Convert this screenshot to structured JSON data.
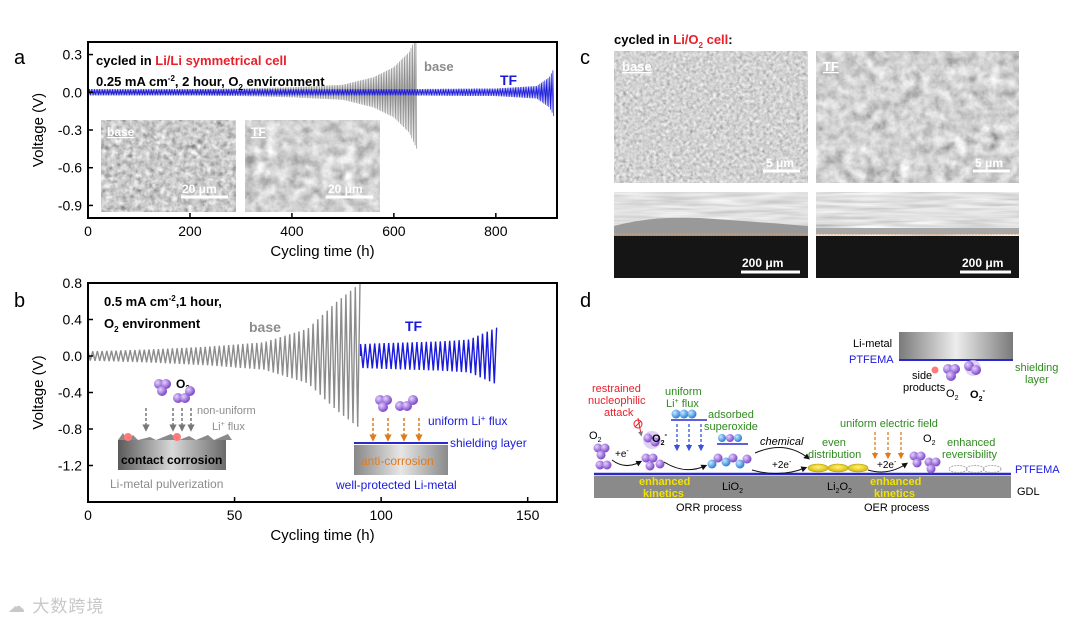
{
  "panel_labels": {
    "a": "a",
    "b": "b",
    "c": "c",
    "d": "d"
  },
  "panel_a": {
    "title_prefix": "cycled in ",
    "title_red": "Li/Li symmetrical cell",
    "cond_line": "0.25 mA cm",
    "cond_sup": "-2",
    "cond_rest": ", 2 hour, O",
    "cond_sub": "2",
    "cond_end": " environment",
    "base_label": "base",
    "tf_label": "TF",
    "inset_base": "base",
    "inset_tf": "TF",
    "scalebar": "20 μm"
  },
  "panel_b": {
    "cond1_a": "0.5 mA cm",
    "cond1_sup": "-2",
    "cond1_b": ",1 hour,",
    "cond2_a": "O",
    "cond2_sub": "2",
    "cond2_b": " environment",
    "base_label": "base",
    "tf_label": "TF",
    "o2": "O",
    "o2_sub": "2",
    "nonuniform1": "non-uniform",
    "nonuniform2": "Li",
    "nonuniform2_sup": "+",
    "nonuniform2_end": " flux",
    "contact": "contact corrosion",
    "pulverization": "Li-metal pulverization",
    "uniform_flux_a": "uniform Li",
    "uniform_flux_sup": "+",
    "uniform_flux_b": " flux",
    "shielding": "shielding layer",
    "anticorrosion": "anti-corrosion",
    "protected": "well-protected Li-metal"
  },
  "panel_c": {
    "title_prefix": "cycled in ",
    "title_red_a": "Li/O",
    "title_red_sub": "2",
    "title_red_b": " cell",
    "title_colon": ":",
    "base": "base",
    "tf": "TF",
    "scale_top": "5 μm",
    "scale_bottom": "200 μm"
  },
  "panel_d": {
    "li_metal": "Li-metal",
    "ptfema": "PTFEMA",
    "side1": "side",
    "side2": "products",
    "o2": "O",
    "o2_sub": "2",
    "o2minus": "O",
    "o2minus_sub": "2",
    "o2minus_sup": "-",
    "shield1": "shielding",
    "shield2": "layer",
    "restrained1": "restrained",
    "restrained2": "nucleophilic",
    "restrained3": "attack",
    "uniform1": "uniform",
    "uniform2_a": "Li",
    "uniform2_sup": "+",
    "uniform2_b": " flux",
    "adsorbed1": "adsorbed",
    "adsorbed2": "superoxide",
    "chemical": "chemical",
    "even1": "even",
    "even2": "distribution",
    "uef": "uniform electric field",
    "enh_rev1": "enhanced",
    "enh_rev2": "reversibility",
    "plus_e": "+e",
    "plus2e": "+2e",
    "enh_kin1": "enhanced",
    "enh_kin2": "kinetics",
    "lio2_a": "LiO",
    "lio2_sub": "2",
    "li2o2_a": "Li",
    "li2o2_sub1": "2",
    "li2o2_b": "O",
    "li2o2_sub2": "2",
    "gdl": "GDL",
    "orr": "ORR process",
    "oer": "OER process"
  },
  "watermark": "大数跨境",
  "colors": {
    "tf_blue": "#1a1adb",
    "base_gray": "#8c8c8c",
    "red": "#e8202a",
    "green": "#2e8b1e",
    "orange": "#e07b1a",
    "yellow": "#f2e200",
    "purple": "#8e5ccf"
  },
  "chart_data": [
    {
      "type": "line",
      "panel": "a",
      "xlabel": "Cycling time (h)",
      "ylabel": "Voltage (V)",
      "xlim": [
        0,
        920
      ],
      "ylim": [
        -1.0,
        0.4
      ],
      "xticks": [
        0,
        200,
        400,
        600,
        800
      ],
      "yticks": [
        0.3,
        0.0,
        -0.3,
        -0.6,
        -0.9
      ],
      "series": [
        {
          "name": "base",
          "color": "#8c8c8c",
          "x": [
            0,
            100,
            200,
            300,
            400,
            500,
            560,
            600,
            630,
            645
          ],
          "amplitude": [
            0.02,
            0.02,
            0.025,
            0.03,
            0.04,
            0.06,
            0.12,
            0.2,
            0.32,
            0.45
          ]
        },
        {
          "name": "TF",
          "color": "#1a1adb",
          "x": [
            0,
            200,
            400,
            600,
            800,
            880,
            905,
            915
          ],
          "amplitude": [
            0.025,
            0.025,
            0.025,
            0.025,
            0.03,
            0.05,
            0.12,
            0.2
          ]
        }
      ]
    },
    {
      "type": "line",
      "panel": "b",
      "xlabel": "Cycling time (h)",
      "ylabel": "Voltage (V)",
      "xlim": [
        0,
        160
      ],
      "ylim": [
        -1.6,
        0.8
      ],
      "xticks": [
        0,
        50,
        100,
        150
      ],
      "yticks": [
        0.8,
        0.4,
        0.0,
        -0.4,
        -0.8,
        -1.2
      ],
      "series": [
        {
          "name": "base",
          "color": "#8c8c8c",
          "x": [
            0,
            20,
            40,
            60,
            75,
            85,
            93
          ],
          "amplitude": [
            0.05,
            0.07,
            0.1,
            0.15,
            0.3,
            0.6,
            0.8
          ]
        },
        {
          "name": "TF",
          "color": "#1a1adb",
          "x": [
            93,
            100,
            110,
            120,
            130,
            135,
            140
          ],
          "amplitude": [
            0.13,
            0.14,
            0.15,
            0.16,
            0.18,
            0.25,
            0.32
          ]
        }
      ]
    }
  ]
}
